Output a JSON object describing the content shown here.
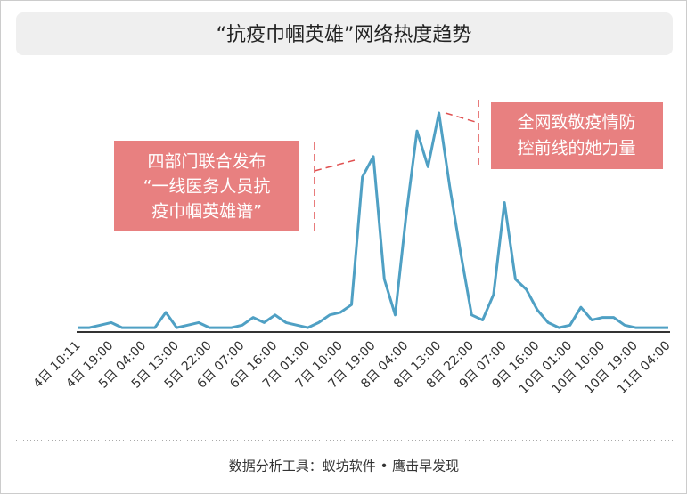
{
  "chart_data": {
    "type": "line",
    "title": "“抗疫巾帼英雄”网络热度趋势",
    "source": "数据分析工具：蚁坊软件 • 鹰击早发现",
    "color": "#4fa0c4",
    "categories": [
      "4日 10:11",
      null,
      null,
      "4日 19:00",
      null,
      null,
      "5日 04:00",
      null,
      null,
      "5日 13:00",
      null,
      null,
      "5日 22:00",
      null,
      null,
      "6日 07:00",
      null,
      null,
      "6日 16:00",
      null,
      null,
      "7日 01:00",
      null,
      null,
      "7日 10:00",
      null,
      null,
      "7日 19:00",
      null,
      null,
      "8日 04:00",
      null,
      null,
      "8日 13:00",
      null,
      null,
      "8日 22:00",
      null,
      null,
      "9日 07:00",
      null,
      null,
      "9日 16:00",
      null,
      null,
      "10日 01:00",
      null,
      null,
      "10日 10:00",
      null,
      null,
      "10日 19:00",
      null,
      null,
      "11日 04:00"
    ],
    "values": [
      1,
      1,
      2,
      3,
      1,
      1,
      1,
      1,
      7,
      1,
      2,
      3,
      1,
      1,
      1,
      2,
      5,
      3,
      6,
      3,
      2,
      1,
      3,
      6,
      7,
      10,
      60,
      68,
      20,
      6,
      45,
      78,
      64,
      85,
      56,
      30,
      6,
      4,
      14,
      50,
      20,
      16,
      8,
      3,
      1,
      2,
      9,
      4,
      5,
      5,
      2,
      1,
      1,
      1,
      1
    ],
    "annotations": [
      {
        "lines": [
          "四部门联合发布",
          "“一线医务人员抗",
          "疫巾帼英雄谱”"
        ]
      },
      {
        "lines": [
          "全网致敬疫情防",
          "控前线的她力量"
        ]
      }
    ]
  }
}
